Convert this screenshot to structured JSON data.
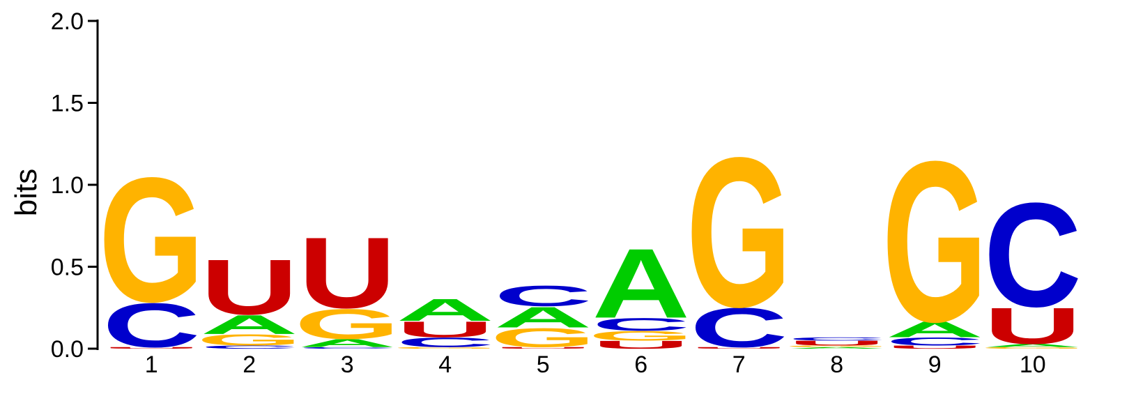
{
  "chart_data": {
    "type": "sequence-logo",
    "ylabel": "bits",
    "ylim": [
      0,
      2.0
    ],
    "yticks": [
      "0.0",
      "0.5",
      "1.0",
      "1.5",
      "2.0"
    ],
    "grid": false,
    "colors": {
      "A": "#00cc00",
      "C": "#0000cc",
      "G": "#ffb300",
      "U": "#cc0000"
    },
    "positions": [
      {
        "label": "1",
        "stack": [
          {
            "letter": "U",
            "height": 0.01
          },
          {
            "letter": "C",
            "height": 0.28
          },
          {
            "letter": "G",
            "height": 0.79
          }
        ]
      },
      {
        "label": "2",
        "stack": [
          {
            "letter": "C",
            "height": 0.02
          },
          {
            "letter": "G",
            "height": 0.07
          },
          {
            "letter": "A",
            "height": 0.12
          },
          {
            "letter": "U",
            "height": 0.35
          }
        ]
      },
      {
        "label": "3",
        "stack": [
          {
            "letter": "C",
            "height": 0.01
          },
          {
            "letter": "A",
            "height": 0.05
          },
          {
            "letter": "G",
            "height": 0.19
          },
          {
            "letter": "U",
            "height": 0.45
          }
        ]
      },
      {
        "label": "4",
        "stack": [
          {
            "letter": "G",
            "height": 0.01
          },
          {
            "letter": "C",
            "height": 0.06
          },
          {
            "letter": "U",
            "height": 0.1
          },
          {
            "letter": "A",
            "height": 0.14
          }
        ]
      },
      {
        "label": "5",
        "stack": [
          {
            "letter": "U",
            "height": 0.01
          },
          {
            "letter": "G",
            "height": 0.12
          },
          {
            "letter": "A",
            "height": 0.13
          },
          {
            "letter": "C",
            "height": 0.13
          }
        ]
      },
      {
        "label": "6",
        "stack": [
          {
            "letter": "U",
            "height": 0.05
          },
          {
            "letter": "G",
            "height": 0.06
          },
          {
            "letter": "C",
            "height": 0.08
          },
          {
            "letter": "A",
            "height": 0.44
          }
        ]
      },
      {
        "label": "7",
        "stack": [
          {
            "letter": "U",
            "height": 0.01
          },
          {
            "letter": "C",
            "height": 0.25
          },
          {
            "letter": "G",
            "height": 0.95
          }
        ]
      },
      {
        "label": "8",
        "stack": [
          {
            "letter": "A",
            "height": 0.01
          },
          {
            "letter": "G",
            "height": 0.01
          },
          {
            "letter": "U",
            "height": 0.03
          },
          {
            "letter": "C",
            "height": 0.02
          }
        ]
      },
      {
        "label": "9",
        "stack": [
          {
            "letter": "U",
            "height": 0.02
          },
          {
            "letter": "C",
            "height": 0.05
          },
          {
            "letter": "A",
            "height": 0.1
          },
          {
            "letter": "G",
            "height": 1.02
          }
        ]
      },
      {
        "label": "10",
        "stack": [
          {
            "letter": "G",
            "height": 0.01
          },
          {
            "letter": "A",
            "height": 0.02
          },
          {
            "letter": "U",
            "height": 0.23
          },
          {
            "letter": "C",
            "height": 0.66
          }
        ]
      }
    ]
  }
}
